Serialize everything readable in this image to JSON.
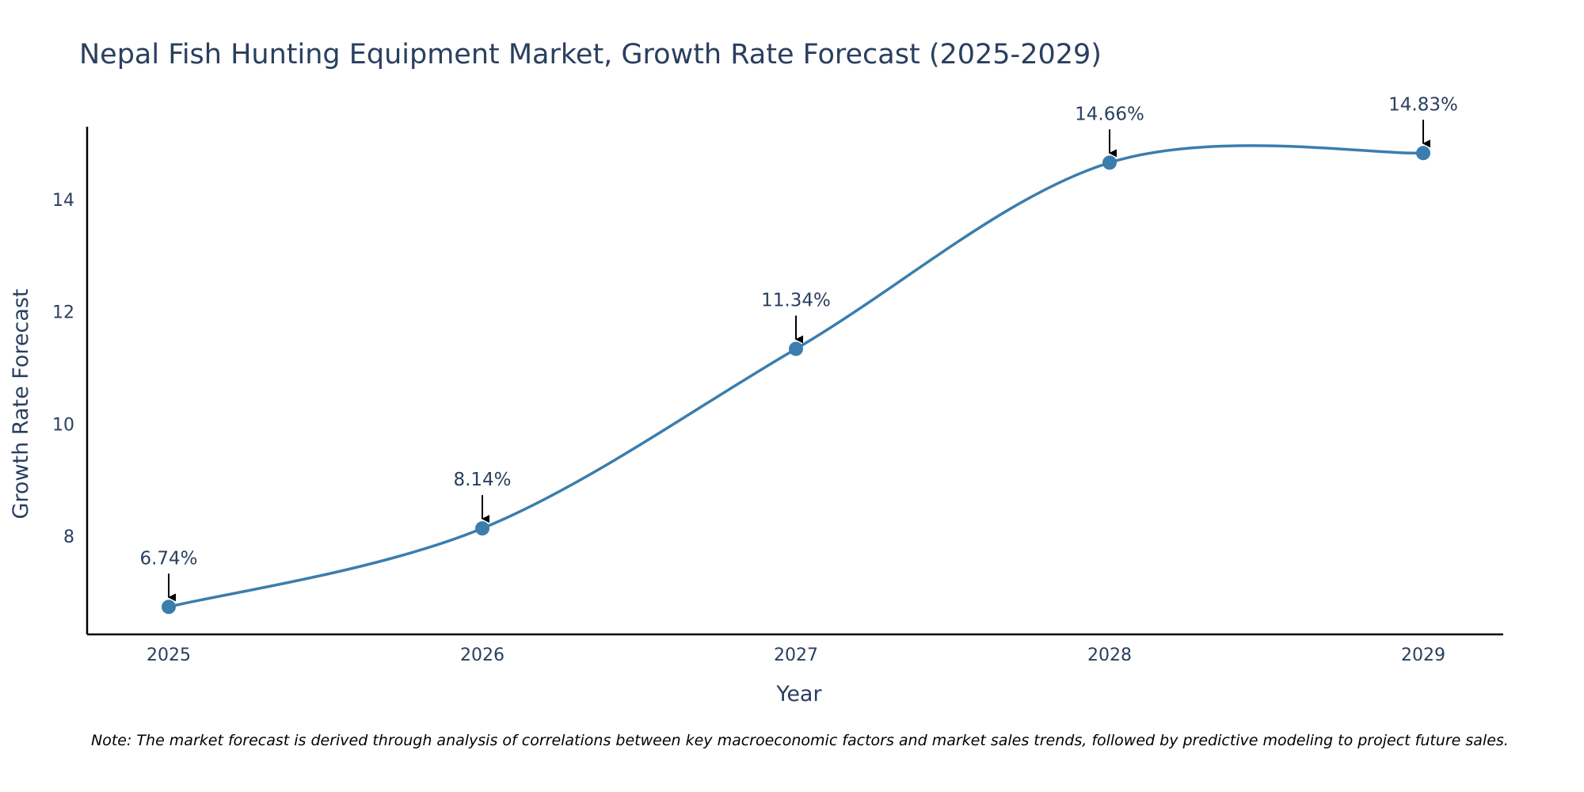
{
  "colors": {
    "line": "#3b7dad",
    "marker": "#3b7dad",
    "axis": "#000000",
    "arrow": "#000000",
    "text": "#2a3f5f"
  },
  "chart_data": {
    "type": "line",
    "title": "Nepal Fish Hunting Equipment Market, Growth Rate Forecast (2025-2029)",
    "xlabel": "Year",
    "ylabel": "Growth Rate Forecast",
    "x": [
      "2025",
      "2026",
      "2027",
      "2028",
      "2029"
    ],
    "series": [
      {
        "values": [
          6.74,
          8.14,
          11.34,
          14.66,
          14.83
        ],
        "data_labels": [
          "6.74%",
          "8.14%",
          "11.34%",
          "14.66%",
          "14.83%"
        ]
      }
    ],
    "ylim": [
      6.25,
      15.3
    ],
    "yticks": [
      8,
      10,
      12,
      14
    ],
    "ytick_labels": [
      "8",
      "10",
      "12",
      "14"
    ],
    "grid": false,
    "line_shape": "spline",
    "markers": true
  },
  "note": "Note: The market forecast is derived through analysis of correlations between key macroeconomic factors and market sales trends, followed by predictive modeling to project future sales."
}
